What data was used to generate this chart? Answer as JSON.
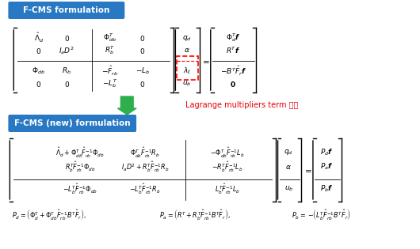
{
  "bg_color": "#ffffff",
  "header1_bg": "#2878c3",
  "header1_text": "F-CMS formulation",
  "header2_bg": "#2878c3",
  "header2_text": "F-CMS (new) formulation",
  "arrow_color": "#2db04b",
  "lagrange_text": "Lagrange multipliers term 처리",
  "lagrange_color": "#e8000a",
  "fig_width": 5.3,
  "fig_height": 3.15,
  "dpi": 100
}
